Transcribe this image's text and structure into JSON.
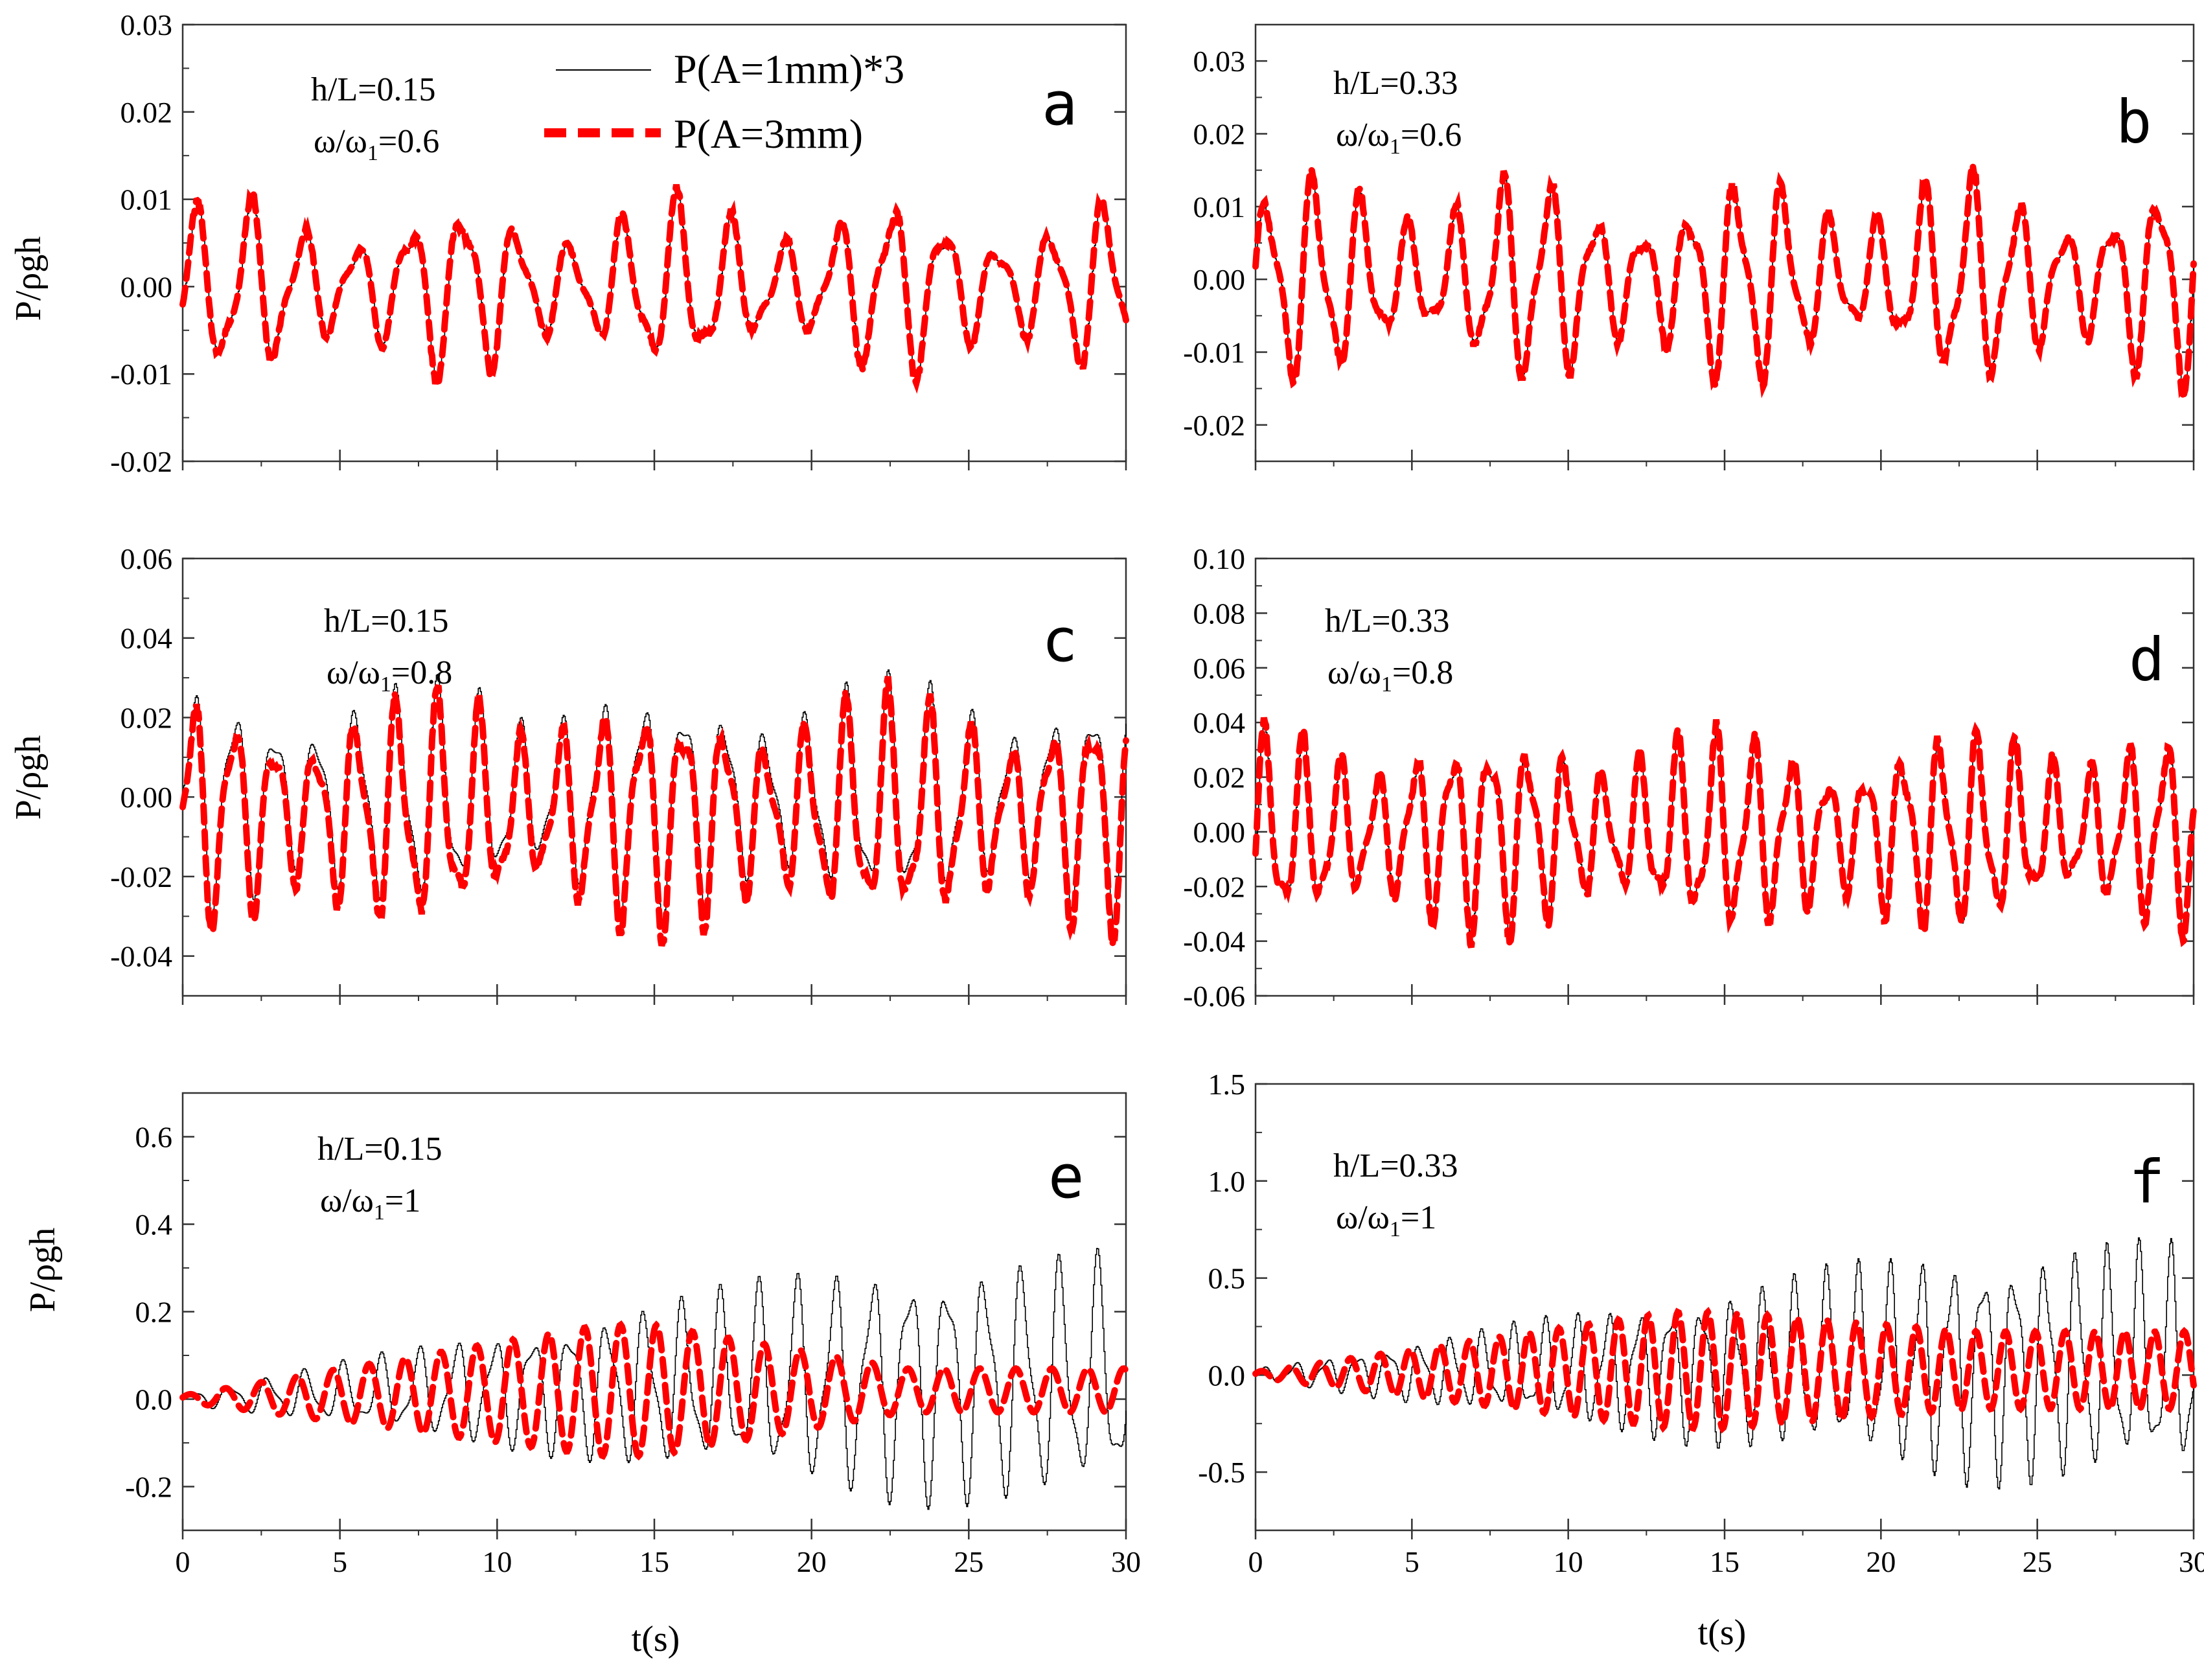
{
  "chart_data": {
    "type": "line",
    "legend": {
      "placement": "top (inside panel a)",
      "entries": [
        {
          "label": "P(A=1mm)*3",
          "style": "thin solid black"
        },
        {
          "label": "P(A=3mm)",
          "style": "thick dashed red"
        }
      ]
    },
    "colors": {
      "series_small": "#000000",
      "series_large": "#ff0000"
    },
    "xlabel": "t(s)",
    "ylabel": "P/ρgh",
    "ylabel_alt": "P/ρgh",
    "xlim": [
      0,
      30
    ],
    "x_ticks": [
      "0",
      "5",
      "10",
      "15",
      "20",
      "25",
      "30"
    ],
    "panels": [
      {
        "id": "a",
        "letter": "a",
        "annot_line1": "h/L=0.15",
        "annot_line2_prefix": "ω/ω",
        "annot_line2_sub": "1",
        "annot_line2_suffix": "=0.6",
        "ylim": [
          -0.02,
          0.03
        ],
        "y_ticks": [
          "-0.02",
          "-0.01",
          "0.00",
          "0.01",
          "0.02",
          "0.03"
        ],
        "y_tick_values": [
          -0.02,
          -0.01,
          0.0,
          0.01,
          0.02,
          0.03
        ],
        "period_s": 1.7,
        "amp_black": 0.011,
        "amp_red": 0.0115,
        "envelope": "steady",
        "offset": 0.0,
        "red_end_amp": 0.0115
      },
      {
        "id": "b",
        "letter": "b",
        "annot_line1": "h/L=0.33",
        "annot_line2_prefix": "ω/ω",
        "annot_line2_sub": "1",
        "annot_line2_suffix": "=0.6",
        "ylim": [
          -0.025,
          0.035
        ],
        "y_ticks": [
          "-0.02",
          "-0.01",
          "0.00",
          "0.01",
          "0.02",
          "0.03"
        ],
        "y_tick_values": [
          -0.02,
          -0.01,
          0.0,
          0.01,
          0.02,
          0.03
        ],
        "period_s": 1.5,
        "amp_black": 0.016,
        "amp_red": 0.0165,
        "envelope": "steady",
        "offset": 0.0,
        "red_end_amp": 0.0165
      },
      {
        "id": "c",
        "letter": "c",
        "annot_line1": "h/L=0.15",
        "annot_line2_prefix": "ω/ω",
        "annot_line2_sub": "1",
        "annot_line2_suffix": "=0.8",
        "ylim": [
          -0.05,
          0.06
        ],
        "y_ticks": [
          "-0.04",
          "-0.02",
          "0.00",
          "0.02",
          "0.04",
          "0.06"
        ],
        "y_tick_values": [
          -0.04,
          -0.02,
          0.0,
          0.02,
          0.04,
          0.06
        ],
        "period_s": 1.3,
        "amp_black": 0.032,
        "amp_red": 0.033,
        "envelope": "beat",
        "offset": -0.004,
        "red_end_amp": 0.033
      },
      {
        "id": "d",
        "letter": "d",
        "annot_line1": "h/L=0.33",
        "annot_line2_prefix": "ω/ω",
        "annot_line2_sub": "1",
        "annot_line2_suffix": "=0.8",
        "ylim": [
          -0.06,
          0.1
        ],
        "y_ticks": [
          "-0.06",
          "-0.04",
          "-0.02",
          "0.00",
          "0.02",
          "0.04",
          "0.06",
          "0.08",
          "0.10"
        ],
        "y_tick_values": [
          -0.06,
          -0.04,
          -0.02,
          0.0,
          0.02,
          0.04,
          0.06,
          0.08,
          0.1
        ],
        "period_s": 1.2,
        "amp_black": 0.04,
        "amp_red": 0.041,
        "envelope": "beat",
        "offset": 0.0,
        "red_end_amp": 0.041
      },
      {
        "id": "e",
        "letter": "e",
        "annot_line1": "h/L=0.15",
        "annot_line2_prefix": "ω/ω",
        "annot_line2_sub": "1",
        "annot_line2_suffix": "=1",
        "ylim": [
          -0.3,
          0.7
        ],
        "y_ticks": [
          "-0.2",
          "0.0",
          "0.2",
          "0.4",
          "0.6"
        ],
        "y_tick_values": [
          -0.2,
          0.0,
          0.2,
          0.4,
          0.6
        ],
        "period_s": 1.2,
        "amp_black": 0.3,
        "amp_red": 0.15,
        "envelope": "growing",
        "offset": 0.08,
        "red_end_amp": 0.05
      },
      {
        "id": "f",
        "letter": "f",
        "annot_line1": "h/L=0.33",
        "annot_line2_prefix": "ω/ω",
        "annot_line2_sub": "1",
        "annot_line2_suffix": "=1",
        "ylim": [
          -0.8,
          1.5
        ],
        "y_ticks": [
          "-0.5",
          "0.0",
          "0.5",
          "1.0",
          "1.5"
        ],
        "y_tick_values": [
          -0.5,
          0.0,
          0.5,
          1.0,
          1.5
        ],
        "period_s": 1.0,
        "amp_black": 0.65,
        "amp_red": 0.3,
        "envelope": "growing",
        "offset": 0.1,
        "red_end_amp": 0.2
      }
    ]
  }
}
